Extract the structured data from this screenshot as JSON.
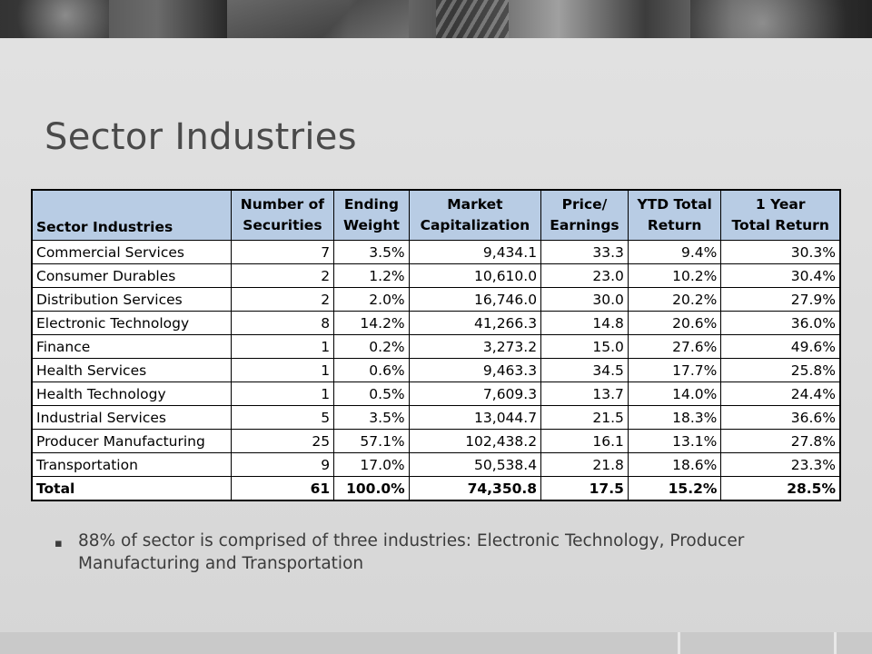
{
  "slide": {
    "title": "Sector Industries",
    "bullet_marker": "▪",
    "bullet_text": "88% of sector is comprised of three industries: Electronic Technology, Producer Manufacturing and Transportation"
  },
  "table": {
    "headers": [
      [
        "Sector Industries"
      ],
      [
        "Number of",
        "Securities"
      ],
      [
        "Ending",
        "Weight"
      ],
      [
        "Market",
        "Capitalization"
      ],
      [
        "Price/",
        "Earnings"
      ],
      [
        "YTD Total",
        "Return"
      ],
      [
        "1 Year",
        "Total Return"
      ]
    ],
    "rows": [
      [
        "Commercial Services",
        "7",
        "3.5%",
        "9,434.1",
        "33.3",
        "9.4%",
        "30.3%"
      ],
      [
        "Consumer Durables",
        "2",
        "1.2%",
        "10,610.0",
        "23.0",
        "10.2%",
        "30.4%"
      ],
      [
        "Distribution Services",
        "2",
        "2.0%",
        "16,746.0",
        "30.0",
        "20.2%",
        "27.9%"
      ],
      [
        "Electronic Technology",
        "8",
        "14.2%",
        "41,266.3",
        "14.8",
        "20.6%",
        "36.0%"
      ],
      [
        "Finance",
        "1",
        "0.2%",
        "3,273.2",
        "15.0",
        "27.6%",
        "49.6%"
      ],
      [
        "Health Services",
        "1",
        "0.6%",
        "9,463.3",
        "34.5",
        "17.7%",
        "25.8%"
      ],
      [
        "Health Technology",
        "1",
        "0.5%",
        "7,609.3",
        "13.7",
        "14.0%",
        "24.4%"
      ],
      [
        "Industrial Services",
        "5",
        "3.5%",
        "13,044.7",
        "21.5",
        "18.3%",
        "36.6%"
      ],
      [
        "Producer Manufacturing",
        "25",
        "57.1%",
        "102,438.2",
        "16.1",
        "13.1%",
        "27.8%"
      ],
      [
        "Transportation",
        "9",
        "17.0%",
        "50,538.4",
        "21.8",
        "18.6%",
        "23.3%"
      ]
    ],
    "total": [
      "Total",
      "61",
      "100.0%",
      "74,350.8",
      "17.5",
      "15.2%",
      "28.5%"
    ]
  },
  "colors": {
    "header_fill": "#b8cce4",
    "title_text": "#4a4a4a",
    "background": "#dcdcdc"
  }
}
